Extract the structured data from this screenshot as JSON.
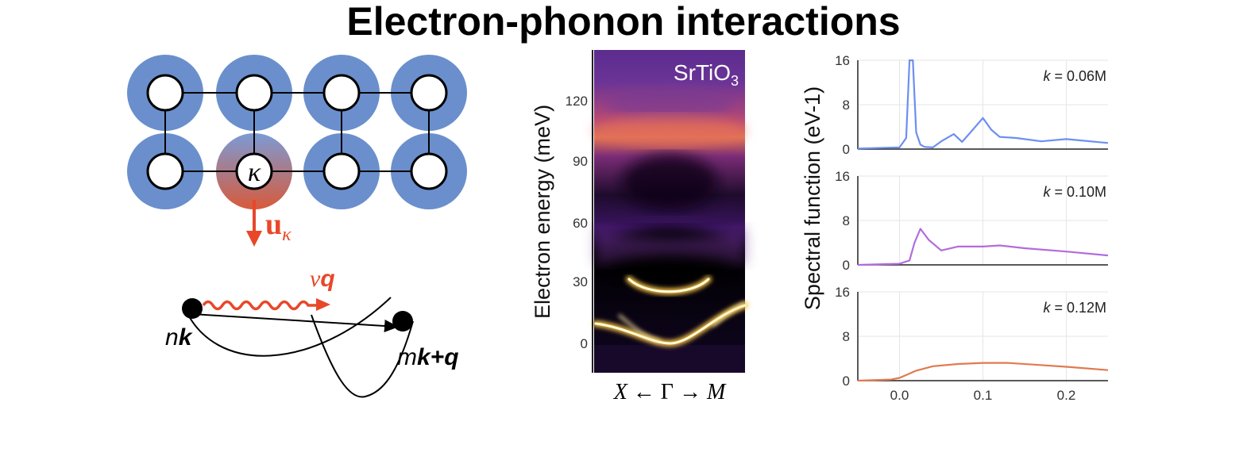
{
  "title": "Electron-phonon interactions",
  "lattice": {
    "atom_label": "κ",
    "displacement_label": "u",
    "displacement_subscript": "κ",
    "colors": {
      "halo": "#6a8fcc",
      "displaced_top": "#7b9bd6",
      "displaced_bottom": "#d85a3a",
      "arrow": "#e8472a"
    }
  },
  "scattering": {
    "phonon_label_nu": "ν",
    "phonon_label_q": "q",
    "initial_n": "n",
    "initial_k": "k",
    "final_m": "m",
    "final_kq": "k+q",
    "colors": {
      "phonon": "#e8472a"
    }
  },
  "spectrum": {
    "ylabel": "Electron energy (meV)",
    "material": "SrTiO",
    "material_sub": "3",
    "yticks": [
      "120",
      "90",
      "60",
      "30",
      "0"
    ],
    "xlabel_left": "X",
    "xlabel_arrow_left": "←",
    "xlabel_center": "Γ",
    "xlabel_arrow_right": "→",
    "xlabel_right": "M"
  },
  "chart_data": [
    {
      "type": "line",
      "ylabel": "Spectral function (eV-1)",
      "annotation_k": "k",
      "annotation": " = 0.06M",
      "xlim": [
        -0.05,
        0.25
      ],
      "ylim": [
        0,
        16
      ],
      "yticks": [
        "16",
        "8",
        "0"
      ],
      "grid": true,
      "color": "#6c8ff0",
      "x": [
        -0.05,
        0.0,
        0.008,
        0.012,
        0.016,
        0.02,
        0.025,
        0.03,
        0.04,
        0.05,
        0.065,
        0.075,
        0.085,
        0.1,
        0.11,
        0.12,
        0.14,
        0.17,
        0.2,
        0.25
      ],
      "y": [
        0.1,
        0.3,
        2.0,
        16,
        16,
        3.0,
        0.8,
        0.4,
        0.3,
        1.4,
        2.7,
        1.3,
        3.0,
        5.6,
        3.5,
        2.2,
        2.0,
        1.4,
        1.8,
        1.1
      ]
    },
    {
      "type": "line",
      "annotation_k": "k",
      "annotation": " = 0.10M",
      "xlim": [
        -0.05,
        0.25
      ],
      "ylim": [
        0,
        16
      ],
      "yticks": [
        "16",
        "8",
        "0"
      ],
      "grid": true,
      "color": "#b26cdd",
      "x": [
        -0.05,
        0.0,
        0.012,
        0.018,
        0.025,
        0.035,
        0.05,
        0.07,
        0.1,
        0.12,
        0.15,
        0.2,
        0.25
      ],
      "y": [
        0.0,
        0.2,
        0.8,
        4.0,
        6.5,
        4.5,
        2.6,
        3.3,
        3.3,
        3.5,
        3.0,
        2.4,
        1.7
      ]
    },
    {
      "type": "line",
      "annotation_k": "k",
      "annotation": " = 0.12M",
      "xlim": [
        -0.05,
        0.25
      ],
      "ylim": [
        0,
        16
      ],
      "yticks": [
        "16",
        "8",
        "0"
      ],
      "xticks": [
        "0.0",
        "0.1",
        "0.2"
      ],
      "grid": true,
      "color": "#e07a50",
      "x": [
        -0.05,
        -0.01,
        0.0,
        0.02,
        0.04,
        0.07,
        0.1,
        0.13,
        0.16,
        0.2,
        0.25
      ],
      "y": [
        0.0,
        0.2,
        0.5,
        1.8,
        2.6,
        3.0,
        3.2,
        3.2,
        2.9,
        2.5,
        1.9
      ]
    }
  ]
}
